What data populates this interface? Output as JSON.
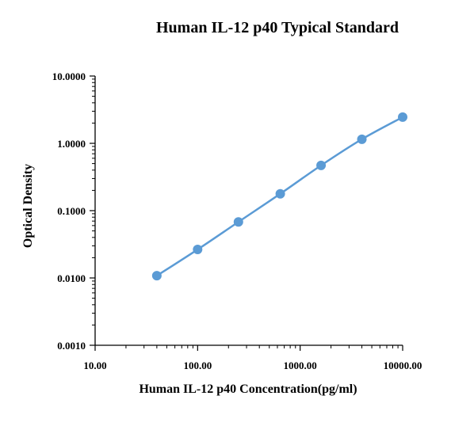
{
  "chart_data": {
    "type": "scatter",
    "title": "Human IL-12 p40 Typical Standard",
    "xlabel": "Human IL-12 p40 Concentration(pg/ml)",
    "ylabel": "Optical Density",
    "xscale": "log",
    "yscale": "log",
    "xlim": [
      10,
      10000
    ],
    "ylim": [
      0.001,
      10
    ],
    "x_ticks": [
      "10.00",
      "100.00",
      "1000.00",
      "10000.00"
    ],
    "y_ticks": [
      "0.0010",
      "0.0100",
      "0.1000",
      "1.0000",
      "10.0000"
    ],
    "grid": false,
    "legend": "none",
    "series": [
      {
        "x": [
          40,
          100,
          250,
          640,
          1600,
          4000,
          10000
        ],
        "y": [
          0.0108,
          0.0265,
          0.068,
          0.178,
          0.47,
          1.15,
          2.45
        ],
        "color": "#5b9bd5",
        "fit_curve": true
      }
    ]
  }
}
